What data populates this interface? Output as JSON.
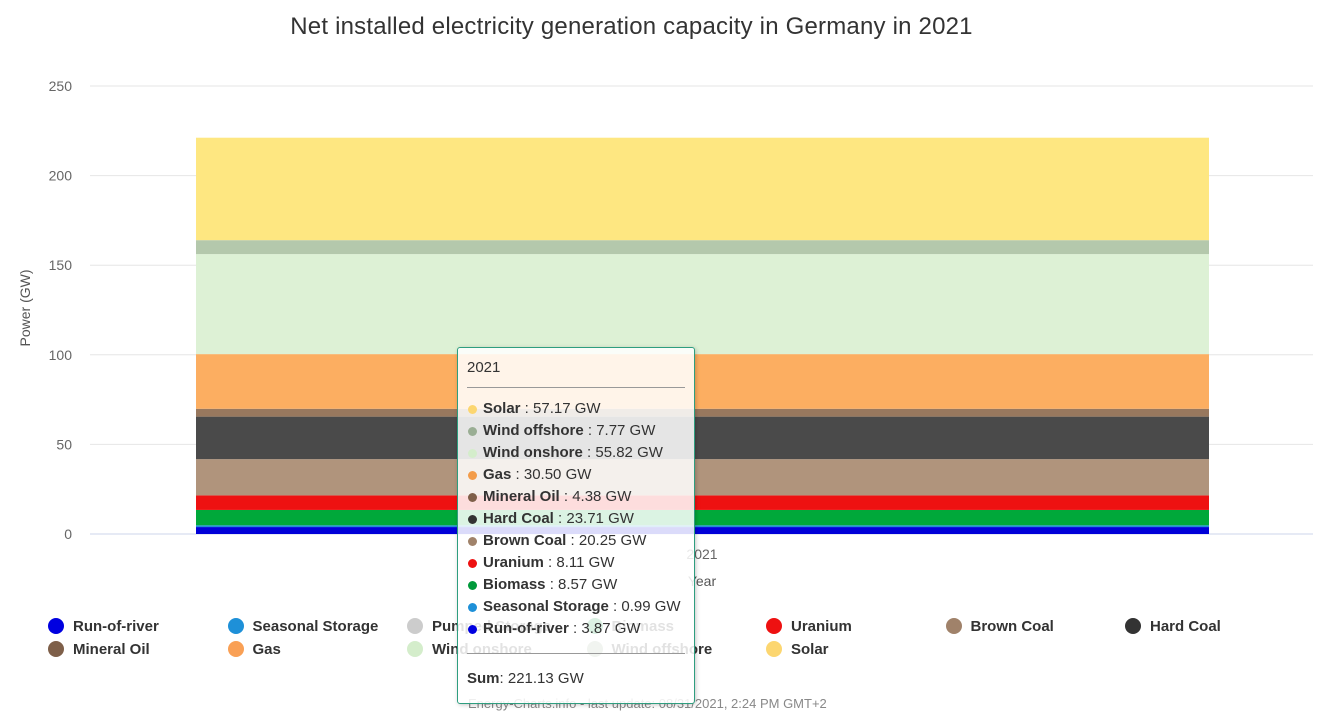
{
  "chart_data": {
    "type": "bar",
    "stacked": true,
    "title": "Net installed electricity generation capacity in Germany in 2021",
    "xlabel": "Year",
    "ylabel": "Power (GW)",
    "categories": [
      "2021"
    ],
    "ylim": [
      0,
      250
    ],
    "yticks": [
      0,
      50,
      100,
      150,
      200,
      250
    ],
    "grid": true,
    "legend_position": "bottom",
    "series": [
      {
        "name": "Run-of-river",
        "values": [
          3.87
        ],
        "color": "#0000d8"
      },
      {
        "name": "Seasonal Storage",
        "values": [
          0.99
        ],
        "color": "#1f8fd6"
      },
      {
        "name": "Pumped Storage",
        "values": [
          0
        ],
        "color": "#cccccc"
      },
      {
        "name": "Biomass",
        "values": [
          8.57
        ],
        "color": "#00a83a"
      },
      {
        "name": "Uranium",
        "values": [
          8.11
        ],
        "color": "#ee1111"
      },
      {
        "name": "Brown Coal",
        "values": [
          20.25
        ],
        "color": "#b0947c"
      },
      {
        "name": "Hard Coal",
        "values": [
          23.71
        ],
        "color": "#4a4a4a"
      },
      {
        "name": "Mineral Oil",
        "values": [
          4.38
        ],
        "color": "#98785e"
      },
      {
        "name": "Gas",
        "values": [
          30.5
        ],
        "color": "#fcae61"
      },
      {
        "name": "Wind onshore",
        "values": [
          55.82
        ],
        "color": "#ddf1d5"
      },
      {
        "name": "Wind offshore",
        "values": [
          7.77
        ],
        "color": "#b4c8ac"
      },
      {
        "name": "Solar",
        "values": [
          57.17
        ],
        "color": "#fee781"
      }
    ]
  },
  "legend": [
    {
      "label": "Run-of-river",
      "color": "#0000e0"
    },
    {
      "label": "Seasonal Storage",
      "color": "#1e90d8"
    },
    {
      "label": "Pumped Storage",
      "color": "#cccccc"
    },
    {
      "label": "Biomass",
      "color": "#00993a"
    },
    {
      "label": "Uranium",
      "color": "#ee1111"
    },
    {
      "label": "Brown Coal",
      "color": "#a0826a"
    },
    {
      "label": "Hard Coal",
      "color": "#333333"
    },
    {
      "label": "Mineral Oil",
      "color": "#7e5f49"
    },
    {
      "label": "Gas",
      "color": "#f9a055"
    },
    {
      "label": "Wind onshore",
      "color": "#d4edcb"
    },
    {
      "label": "Wind offshore",
      "color": "#9aae94"
    },
    {
      "label": "Solar",
      "color": "#fcd670"
    }
  ],
  "tooltip": {
    "header": "2021",
    "rows": [
      {
        "name": "Solar",
        "value": ": 57.17 GW",
        "color": "#fcd670"
      },
      {
        "name": "Wind offshore",
        "value": ": 7.77 GW",
        "color": "#9aae94"
      },
      {
        "name": "Wind onshore",
        "value": ": 55.82 GW",
        "color": "#d4edcb"
      },
      {
        "name": "Gas",
        "value": ": 30.50 GW",
        "color": "#f39c4a"
      },
      {
        "name": "Mineral Oil",
        "value": ": 4.38 GW",
        "color": "#7e5f49"
      },
      {
        "name": "Hard Coal",
        "value": ": 23.71 GW",
        "color": "#333333"
      },
      {
        "name": "Brown Coal",
        "value": ": 20.25 GW",
        "color": "#a0826a"
      },
      {
        "name": "Uranium",
        "value": ": 8.11 GW",
        "color": "#ee1111"
      },
      {
        "name": "Biomass",
        "value": ": 8.57 GW",
        "color": "#00993a"
      },
      {
        "name": "Seasonal Storage",
        "value": ": 0.99 GW",
        "color": "#1e90d8"
      },
      {
        "name": "Run-of-river",
        "value": ": 3.87 GW",
        "color": "#0000e0"
      }
    ],
    "sum_label": "Sum",
    "sum_value": ": 221.13 GW"
  },
  "credits": "Energy-Charts.info - last update: 08/31/2021, 2:24 PM GMT+2"
}
